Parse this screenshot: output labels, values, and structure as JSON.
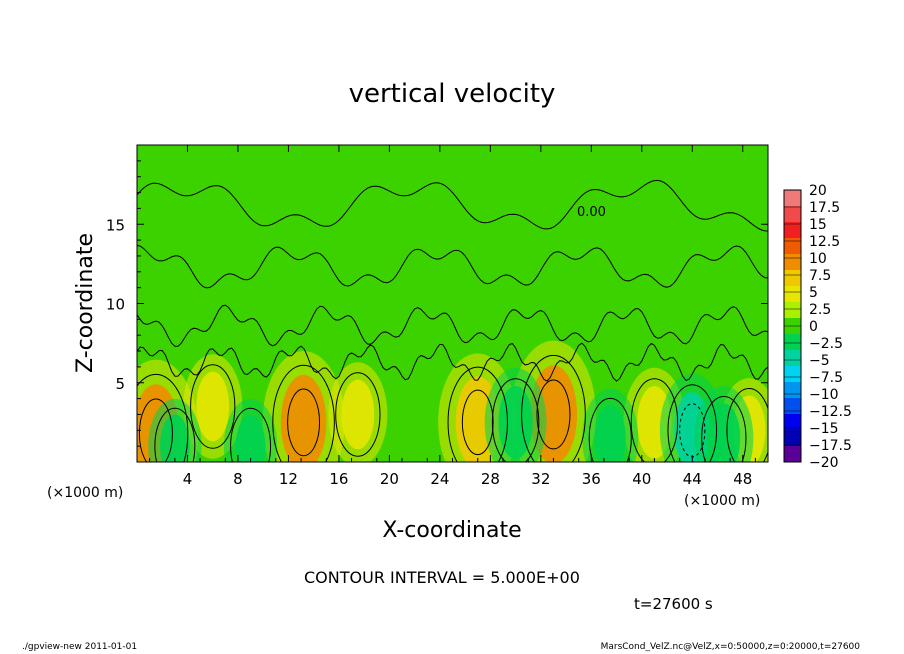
{
  "chart_data": {
    "type": "heatmap",
    "title": "vertical velocity",
    "xlabel": "X-coordinate",
    "ylabel": "Z-coordinate",
    "x_unit_left": "(×1000 m)",
    "x_unit_right": "(×1000 m)",
    "xlim": [
      0,
      50
    ],
    "ylim": [
      0,
      20
    ],
    "x_ticks": [
      4,
      8,
      12,
      16,
      20,
      24,
      28,
      32,
      36,
      40,
      44,
      48
    ],
    "y_ticks": [
      5,
      10,
      15
    ],
    "contour_label": "0.00",
    "contour_interval_text": "CONTOUR INTERVAL = 5.000E+00",
    "time_text": "t=27600 s",
    "colorbar": {
      "levels": [
        20,
        17.5,
        15,
        12.5,
        10,
        7.5,
        5,
        2.5,
        0,
        -2.5,
        -5,
        -7.5,
        -10,
        -12.5,
        -15,
        -17.5,
        -20
      ],
      "labels": [
        "20",
        "17.5",
        "15",
        "12.5",
        "10",
        "7.5",
        "5",
        "2.5",
        "0",
        "−2.5",
        "−5",
        "−7.5",
        "−10",
        "−12.5",
        "−15",
        "−17.5",
        "−20"
      ],
      "colors": [
        "#f07a7a",
        "#f04a4a",
        "#f02020",
        "#f05a00",
        "#f08c00",
        "#f0c800",
        "#e6e600",
        "#aaf000",
        "#3cd200",
        "#00d250",
        "#00d2a0",
        "#00d2f0",
        "#0096f0",
        "#0050f0",
        "#0000f0",
        "#0000b4",
        "#5a0096"
      ]
    },
    "updrafts": [
      {
        "x": 1.5,
        "z": 1.8,
        "w": 8.5
      },
      {
        "x": 6.0,
        "z": 3.5,
        "w": 4.0
      },
      {
        "x": 13.2,
        "z": 2.5,
        "w": 8.0
      },
      {
        "x": 17.5,
        "z": 3.0,
        "w": 4.0
      },
      {
        "x": 27.0,
        "z": 2.5,
        "w": 7.5
      },
      {
        "x": 33.0,
        "z": 3.0,
        "w": 8.5
      },
      {
        "x": 41.0,
        "z": 2.5,
        "w": 4.5
      },
      {
        "x": 48.5,
        "z": 2.0,
        "w": 4.0
      }
    ],
    "downdrafts": [
      {
        "x": 3.0,
        "z": 1.0,
        "w": -3.0
      },
      {
        "x": 9.0,
        "z": 1.0,
        "w": -3.0
      },
      {
        "x": 30.0,
        "z": 2.5,
        "w": -4.5
      },
      {
        "x": 37.5,
        "z": 1.5,
        "w": -3.5
      },
      {
        "x": 44.0,
        "z": 2.0,
        "w": -5.0
      },
      {
        "x": 46.5,
        "z": 1.5,
        "w": -4.0
      }
    ]
  },
  "footer": {
    "left": "./gpview-new  2011-01-01",
    "right": "MarsCond_VelZ.nc@VelZ,x=0:50000,z=0:20000,t=27600"
  }
}
